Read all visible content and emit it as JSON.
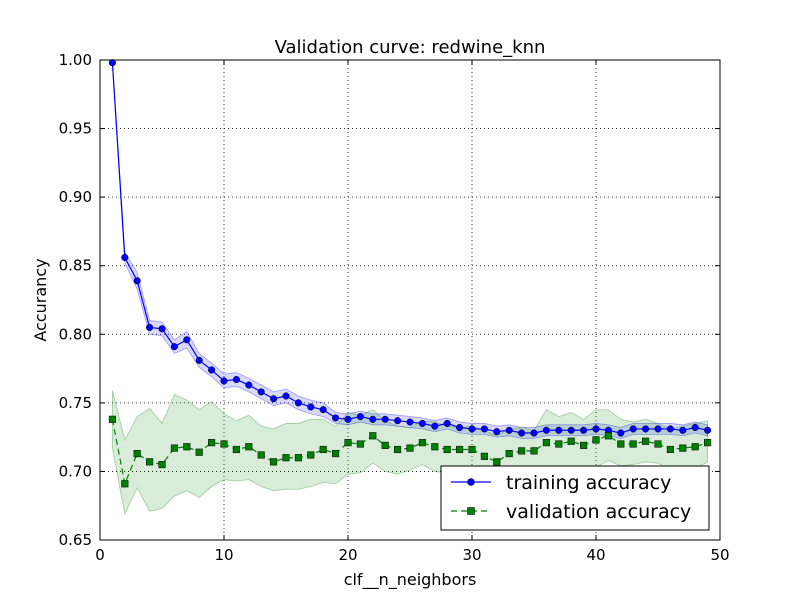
{
  "chart_data": {
    "type": "line",
    "title": "Validation curve: redwine_knn",
    "xlabel": "clf__n_neighbors",
    "ylabel": "Accurancy",
    "xlim": [
      0,
      50
    ],
    "ylim": [
      0.65,
      1.0
    ],
    "xticks": [
      0,
      10,
      20,
      30,
      40,
      50
    ],
    "xtick_labels": [
      "0",
      "10",
      "20",
      "30",
      "40",
      "50"
    ],
    "yticks": [
      0.65,
      0.7,
      0.75,
      0.8,
      0.85,
      0.9,
      0.95,
      1.0
    ],
    "ytick_labels": [
      "0.65",
      "0.70",
      "0.75",
      "0.80",
      "0.85",
      "0.90",
      "0.95",
      "1.00"
    ],
    "grid": true,
    "legend_position": "bottom-right",
    "x": [
      1,
      2,
      3,
      4,
      5,
      6,
      7,
      8,
      9,
      10,
      11,
      12,
      13,
      14,
      15,
      16,
      17,
      18,
      19,
      20,
      21,
      22,
      23,
      24,
      25,
      26,
      27,
      28,
      29,
      30,
      31,
      32,
      33,
      34,
      35,
      36,
      37,
      38,
      39,
      40,
      41,
      42,
      43,
      44,
      45,
      46,
      47,
      48,
      49
    ],
    "series": [
      {
        "name": "training accuracy",
        "color": "#0000ff",
        "marker": "circle",
        "linestyle": "solid",
        "values": [
          0.998,
          0.856,
          0.839,
          0.805,
          0.804,
          0.791,
          0.796,
          0.781,
          0.774,
          0.766,
          0.767,
          0.763,
          0.758,
          0.753,
          0.755,
          0.75,
          0.747,
          0.745,
          0.739,
          0.738,
          0.74,
          0.738,
          0.738,
          0.737,
          0.736,
          0.735,
          0.733,
          0.735,
          0.732,
          0.731,
          0.731,
          0.729,
          0.73,
          0.728,
          0.728,
          0.73,
          0.73,
          0.73,
          0.73,
          0.731,
          0.73,
          0.728,
          0.731,
          0.731,
          0.731,
          0.731,
          0.73,
          0.732,
          0.73
        ],
        "band_upper": [
          0.999,
          0.86,
          0.845,
          0.81,
          0.809,
          0.796,
          0.802,
          0.786,
          0.779,
          0.771,
          0.772,
          0.768,
          0.763,
          0.758,
          0.76,
          0.755,
          0.752,
          0.75,
          0.743,
          0.742,
          0.744,
          0.742,
          0.742,
          0.741,
          0.74,
          0.739,
          0.737,
          0.739,
          0.736,
          0.735,
          0.735,
          0.733,
          0.734,
          0.732,
          0.732,
          0.734,
          0.734,
          0.734,
          0.734,
          0.735,
          0.734,
          0.732,
          0.735,
          0.735,
          0.735,
          0.735,
          0.734,
          0.736,
          0.734
        ],
        "band_lower": [
          0.997,
          0.852,
          0.833,
          0.8,
          0.799,
          0.786,
          0.79,
          0.776,
          0.769,
          0.761,
          0.762,
          0.758,
          0.753,
          0.748,
          0.75,
          0.745,
          0.742,
          0.74,
          0.735,
          0.734,
          0.736,
          0.734,
          0.734,
          0.733,
          0.732,
          0.731,
          0.729,
          0.731,
          0.728,
          0.727,
          0.727,
          0.725,
          0.726,
          0.724,
          0.724,
          0.726,
          0.726,
          0.726,
          0.726,
          0.727,
          0.726,
          0.724,
          0.727,
          0.727,
          0.727,
          0.727,
          0.726,
          0.728,
          0.726
        ]
      },
      {
        "name": "validation accuracy",
        "color": "#008000",
        "marker": "square",
        "linestyle": "dashed",
        "values": [
          0.738,
          0.691,
          0.713,
          0.707,
          0.705,
          0.717,
          0.718,
          0.714,
          0.721,
          0.72,
          0.716,
          0.718,
          0.712,
          0.707,
          0.71,
          0.71,
          0.712,
          0.716,
          0.713,
          0.721,
          0.72,
          0.726,
          0.719,
          0.716,
          0.717,
          0.721,
          0.718,
          0.716,
          0.716,
          0.716,
          0.711,
          0.707,
          0.713,
          0.715,
          0.715,
          0.721,
          0.72,
          0.722,
          0.719,
          0.723,
          0.726,
          0.72,
          0.72,
          0.722,
          0.72,
          0.716,
          0.717,
          0.718,
          0.721
        ],
        "band_upper": [
          0.759,
          0.723,
          0.74,
          0.746,
          0.735,
          0.756,
          0.752,
          0.745,
          0.751,
          0.742,
          0.737,
          0.741,
          0.733,
          0.731,
          0.735,
          0.735,
          0.738,
          0.738,
          0.733,
          0.743,
          0.741,
          0.745,
          0.737,
          0.733,
          0.732,
          0.737,
          0.736,
          0.733,
          0.732,
          0.733,
          0.73,
          0.726,
          0.731,
          0.732,
          0.73,
          0.745,
          0.74,
          0.743,
          0.738,
          0.745,
          0.745,
          0.738,
          0.736,
          0.738,
          0.735,
          0.731,
          0.733,
          0.735,
          0.737
        ],
        "band_lower": [
          0.717,
          0.669,
          0.688,
          0.671,
          0.673,
          0.682,
          0.686,
          0.681,
          0.689,
          0.694,
          0.693,
          0.694,
          0.689,
          0.686,
          0.687,
          0.687,
          0.689,
          0.692,
          0.691,
          0.698,
          0.699,
          0.706,
          0.7,
          0.698,
          0.701,
          0.705,
          0.7,
          0.699,
          0.7,
          0.7,
          0.694,
          0.689,
          0.696,
          0.698,
          0.701,
          0.699,
          0.701,
          0.702,
          0.701,
          0.703,
          0.708,
          0.704,
          0.705,
          0.707,
          0.706,
          0.701,
          0.702,
          0.702,
          0.707
        ]
      }
    ]
  }
}
